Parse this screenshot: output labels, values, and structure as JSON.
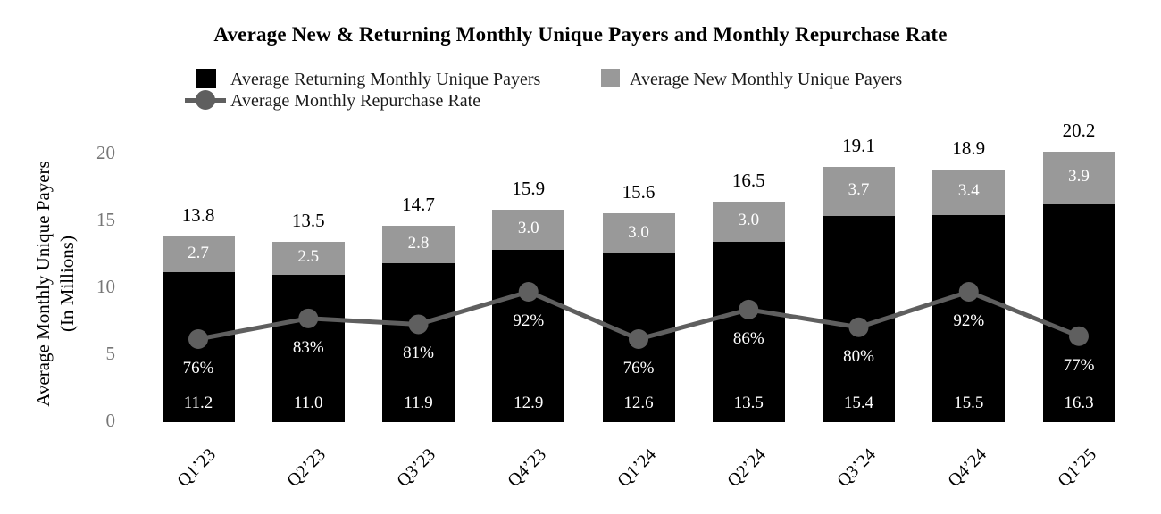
{
  "chart_data": {
    "type": "bar",
    "subtype": "stacked-column-with-line-overlay",
    "title": "Average New & Returning Monthly Unique Payers and Monthly Repurchase Rate",
    "categories": [
      "Q1’23",
      "Q2’23",
      "Q3’23",
      "Q4’23",
      "Q1’24",
      "Q2’24",
      "Q3’24",
      "Q4’24",
      "Q1’25"
    ],
    "series": [
      {
        "name": "Average Returning Monthly Unique Payers",
        "type": "bar",
        "color": "#000000",
        "values": [
          11.2,
          11.0,
          11.9,
          12.9,
          12.6,
          13.5,
          15.4,
          15.5,
          16.3
        ]
      },
      {
        "name": "Average New Monthly Unique Payers",
        "type": "bar",
        "color": "#999999",
        "values": [
          2.7,
          2.5,
          2.8,
          3.0,
          3.0,
          3.0,
          3.7,
          3.4,
          3.9
        ]
      },
      {
        "name": "Average Monthly Repurchase Rate",
        "type": "line",
        "color": "#5f5f5f",
        "unit": "%",
        "values": [
          76,
          83,
          81,
          92,
          76,
          86,
          80,
          92,
          77
        ]
      }
    ],
    "totals": [
      13.8,
      13.5,
      14.7,
      15.9,
      15.6,
      16.5,
      19.1,
      18.9,
      20.2
    ],
    "ylabel_lines": [
      "Average Monthly Unique Payers",
      "(In Millions)"
    ],
    "yticks": [
      0,
      5,
      10,
      15,
      20
    ],
    "ylim": [
      0,
      20
    ],
    "grid": false,
    "legend_position": "top",
    "colors": {
      "returning_bar": "#000000",
      "new_bar": "#999999",
      "rate_line": "#5f5f5f",
      "tick_text": "#767676",
      "on_bar_text": "#ffffff"
    }
  }
}
